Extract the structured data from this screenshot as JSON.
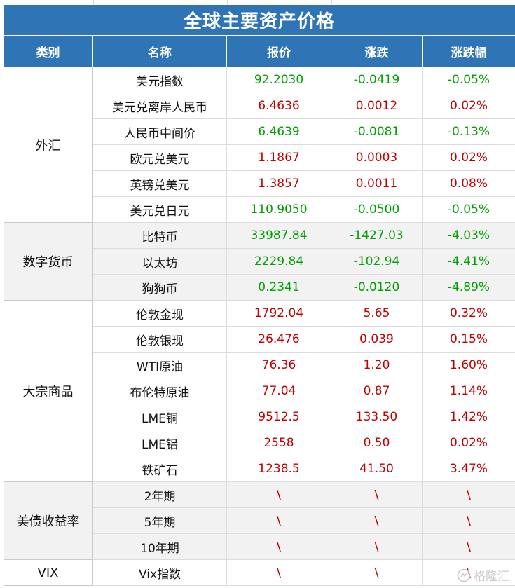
{
  "title": "全球主要资产价格",
  "headers": [
    "类别",
    "名称",
    "报价",
    "涨跌",
    "涨跌幅"
  ],
  "groups": [
    {
      "category": "外汇",
      "shade": false,
      "rows": [
        {
          "name": "美元指数",
          "price": "92.2030",
          "change": "-0.0419",
          "pct": "-0.05%",
          "dir": "down"
        },
        {
          "name": "美元兑离岸人民币",
          "price": "6.4636",
          "change": "0.0012",
          "pct": "0.02%",
          "dir": "up"
        },
        {
          "name": "人民币中间价",
          "price": "6.4639",
          "change": "-0.0081",
          "pct": "-0.13%",
          "dir": "down"
        },
        {
          "name": "欧元兑美元",
          "price": "1.1867",
          "change": "0.0003",
          "pct": "0.02%",
          "dir": "up"
        },
        {
          "name": "英镑兑美元",
          "price": "1.3857",
          "change": "0.0011",
          "pct": "0.08%",
          "dir": "up"
        },
        {
          "name": "美元兑日元",
          "price": "110.9050",
          "change": "-0.0500",
          "pct": "-0.05%",
          "dir": "down"
        }
      ]
    },
    {
      "category": "数字货币",
      "shade": true,
      "rows": [
        {
          "name": "比特币",
          "price": "33987.84",
          "change": "-1427.03",
          "pct": "-4.03%",
          "dir": "down"
        },
        {
          "name": "以太坊",
          "price": "2229.84",
          "change": "-102.94",
          "pct": "-4.41%",
          "dir": "down"
        },
        {
          "name": "狗狗币",
          "price": "0.2341",
          "change": "-0.0120",
          "pct": "-4.89%",
          "dir": "down"
        }
      ]
    },
    {
      "category": "大宗商品",
      "shade": false,
      "rows": [
        {
          "name": "伦敦金现",
          "price": "1792.04",
          "change": "5.65",
          "pct": "0.32%",
          "dir": "up"
        },
        {
          "name": "伦敦银现",
          "price": "26.476",
          "change": "0.039",
          "pct": "0.15%",
          "dir": "up"
        },
        {
          "name": "WTI原油",
          "price": "76.36",
          "change": "1.20",
          "pct": "1.60%",
          "dir": "up"
        },
        {
          "name": "布伦特原油",
          "price": "77.04",
          "change": "0.87",
          "pct": "1.14%",
          "dir": "up"
        },
        {
          "name": "LME铜",
          "price": "9512.5",
          "change": "133.50",
          "pct": "1.42%",
          "dir": "up"
        },
        {
          "name": "LME铝",
          "price": "2558",
          "change": "0.50",
          "pct": "0.02%",
          "dir": "up"
        },
        {
          "name": "铁矿石",
          "price": "1238.5",
          "change": "41.50",
          "pct": "3.47%",
          "dir": "up"
        }
      ]
    },
    {
      "category": "美债收益率",
      "shade": true,
      "rows": [
        {
          "name": "2年期",
          "price": "\\",
          "change": "\\",
          "pct": "\\",
          "dir": "na"
        },
        {
          "name": "5年期",
          "price": "\\",
          "change": "\\",
          "pct": "\\",
          "dir": "na"
        },
        {
          "name": "10年期",
          "price": "\\",
          "change": "\\",
          "pct": "\\",
          "dir": "na"
        }
      ]
    },
    {
      "category": "VIX",
      "shade": false,
      "rows": [
        {
          "name": "Vix指数",
          "price": "\\",
          "change": "\\",
          "pct": "\\",
          "dir": "na"
        }
      ]
    }
  ],
  "watermark": "格隆汇",
  "colors": {
    "header_bg": "#2f75b5",
    "up": "#c00000",
    "down": "#00a000",
    "shade": "#f2f2f2"
  }
}
